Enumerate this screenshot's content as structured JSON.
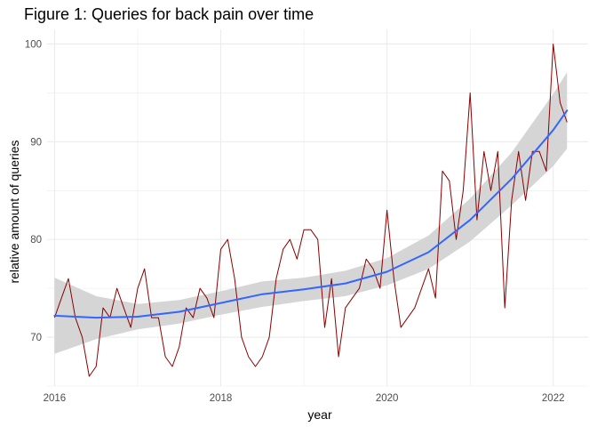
{
  "chart_data": {
    "type": "line",
    "title": "Figure 1: Queries for back pain over time",
    "xlabel": "year",
    "ylabel": "relative amount of queries",
    "xlim": [
      2015.91,
      2022.42
    ],
    "ylim": [
      65,
      101.5
    ],
    "x_ticks": [
      2016,
      2018,
      2020,
      2022
    ],
    "y_ticks": [
      70,
      80,
      90,
      100
    ],
    "grid": true,
    "colors": {
      "series": "#8b0000",
      "smooth": "#3366ff",
      "ribbon": "#d3d3d3",
      "grid": "#ebebeb"
    },
    "series": [
      {
        "x": [
          2016.0,
          2016.083,
          2016.167,
          2016.25,
          2016.333,
          2016.417,
          2016.5,
          2016.583,
          2016.667,
          2016.75,
          2016.833,
          2016.917,
          2017.0,
          2017.083,
          2017.167,
          2017.25,
          2017.333,
          2017.417,
          2017.5,
          2017.583,
          2017.667,
          2017.75,
          2017.833,
          2017.917,
          2018.0,
          2018.083,
          2018.167,
          2018.25,
          2018.333,
          2018.417,
          2018.5,
          2018.583,
          2018.667,
          2018.75,
          2018.833,
          2018.917,
          2019.0,
          2019.083,
          2019.167,
          2019.25,
          2019.333,
          2019.417,
          2019.5,
          2019.583,
          2019.667,
          2019.75,
          2019.833,
          2019.917,
          2020.0,
          2020.083,
          2020.167,
          2020.25,
          2020.333,
          2020.417,
          2020.5,
          2020.583,
          2020.667,
          2020.75,
          2020.833,
          2020.917,
          2021.0,
          2021.083,
          2021.167,
          2021.25,
          2021.333,
          2021.417,
          2021.5,
          2021.583,
          2021.667,
          2021.75,
          2021.833,
          2021.917,
          2022.0,
          2022.083,
          2022.167
        ],
        "y": [
          72,
          74,
          76,
          72,
          70,
          66,
          67,
          73,
          72,
          75,
          73,
          71,
          75,
          77,
          72,
          72,
          68,
          67,
          69,
          73,
          72,
          75,
          74,
          72,
          79,
          80,
          76,
          70,
          68,
          67,
          68,
          70,
          76,
          79,
          80,
          78,
          81,
          81,
          80,
          71,
          76,
          68,
          73,
          74,
          75,
          78,
          77,
          75,
          83,
          76,
          71,
          72,
          73,
          75,
          77,
          74,
          87,
          86,
          80,
          85,
          95,
          82,
          89,
          85,
          89,
          73,
          84,
          89,
          84,
          89,
          89,
          87,
          100,
          94,
          92
        ]
      }
    ],
    "smooth": {
      "x": [
        2016.0,
        2016.5,
        2017.0,
        2017.5,
        2018.0,
        2018.5,
        2019.0,
        2019.5,
        2020.0,
        2020.5,
        2021.0,
        2021.5,
        2022.0,
        2022.167
      ],
      "y": [
        72.2,
        72.0,
        72.1,
        72.6,
        73.5,
        74.4,
        74.9,
        75.5,
        76.7,
        78.7,
        82.0,
        86.2,
        91.2,
        93.2
      ],
      "lower": [
        68.3,
        69.8,
        70.8,
        71.4,
        72.3,
        73.1,
        73.7,
        74.2,
        75.3,
        77.0,
        79.8,
        83.5,
        87.5,
        89.3
      ],
      "upper": [
        76.1,
        74.2,
        73.4,
        73.8,
        74.7,
        75.7,
        76.1,
        76.8,
        78.1,
        80.4,
        84.2,
        88.9,
        94.9,
        97.1
      ]
    }
  }
}
